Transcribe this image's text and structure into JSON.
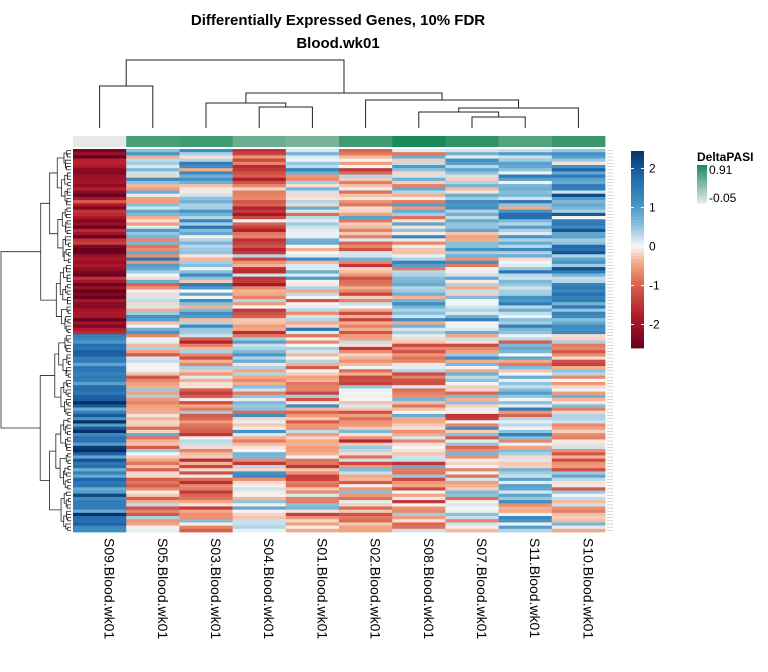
{
  "chart_data": {
    "type": "heatmap",
    "title": "Differentially Expressed Genes, 10% FDR",
    "subtitle": "Blood.wk01",
    "columns": [
      "S09.Blood.wk01",
      "S05.Blood.wk01",
      "S03.Blood.wk01",
      "S04.Blood.wk01",
      "S01.Blood.wk01",
      "S02.Blood.wk01",
      "S08.Blood.wk01",
      "S07.Blood.wk01",
      "S11.Blood.wk01",
      "S10.Blood.wk01"
    ],
    "n_rows": 120,
    "value_range": [
      -2.6,
      2.5
    ],
    "colorbar": {
      "ticks": [
        2,
        1,
        0,
        -1,
        -2
      ],
      "tick_labels": [
        "2",
        "1",
        "0",
        "-1",
        "-2"
      ],
      "colors": {
        "low": "#67001f",
        "mid": "#f7f7f7",
        "high": "#053061"
      }
    },
    "annotation": {
      "name": "DeltaPASI",
      "min_label": "-0.05",
      "max_label": "0.91",
      "color_low": "#e8e8e8",
      "color_high": "#1b8a5a",
      "levels": [
        0.0,
        0.78,
        0.82,
        0.62,
        0.55,
        0.82,
        1.0,
        0.9,
        0.72,
        0.86
      ]
    },
    "row_groups": [
      {
        "rows": 58,
        "means": [
          -2.0,
          0.3,
          0.6,
          -0.9,
          0.2,
          -0.4,
          0.2,
          0.3,
          0.5,
          1.0
        ]
      },
      {
        "rows": 62,
        "means": [
          1.6,
          -0.3,
          -0.6,
          0.2,
          -0.4,
          -0.3,
          -0.4,
          -0.1,
          0.3,
          -0.2
        ]
      }
    ]
  }
}
